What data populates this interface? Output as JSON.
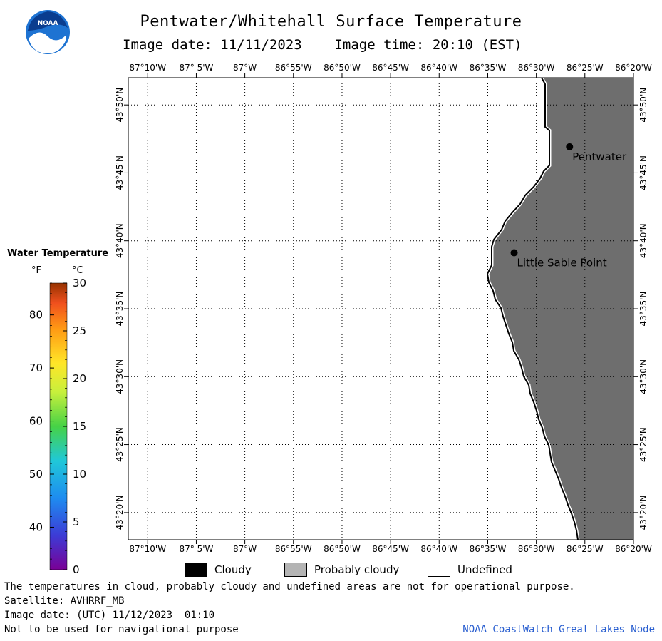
{
  "title": "Pentwater/Whitehall Surface Temperature",
  "image_date_label": "Image date: 11/11/2023",
  "image_time_label": "Image time: 20:10 (EST)",
  "logo_text": "NOAA",
  "map": {
    "lon_labels": [
      "87°10'W",
      "87° 5'W",
      "87°W",
      "86°55'W",
      "86°50'W",
      "86°45'W",
      "86°40'W",
      "86°35'W",
      "86°30'W",
      "86°25'W",
      "86°20'W"
    ],
    "lat_labels": [
      "43°50'N",
      "43°45'N",
      "43°40'N",
      "43°35'N",
      "43°30'N",
      "43°25'N",
      "43°20'N"
    ],
    "places": [
      {
        "name": "Pentwater",
        "lat": 43.782,
        "lon": -86.443
      },
      {
        "name": "Little Sable Point",
        "lat": 43.652,
        "lon": -86.538
      }
    ],
    "land_color": "#6e6e6e",
    "water_color": "#ffffff"
  },
  "scale": {
    "title": "Water Temperature",
    "unit_f": "°F",
    "unit_c": "°C",
    "f_ticks": [
      "80",
      "70",
      "60",
      "50",
      "40"
    ],
    "c_ticks": [
      "30",
      "25",
      "20",
      "15",
      "10",
      "5",
      "0"
    ]
  },
  "legend": [
    {
      "label": "Cloudy",
      "color": "#000000"
    },
    {
      "label": "Probably cloudy",
      "color": "#b4b4b4"
    },
    {
      "label": "Undefined",
      "color": "#ffffff"
    }
  ],
  "footer": {
    "disclaimer": "The temperatures in cloud, probably cloudy and undefined areas are not for operational purpose.",
    "satellite": "Satellite: AVHRRF_MB",
    "utc_date": "Image date: (UTC) 11/12/2023  01:10",
    "nav_warning": "Not to be used for navigational purpose",
    "credit": "NOAA CoastWatch Great Lakes Node"
  }
}
